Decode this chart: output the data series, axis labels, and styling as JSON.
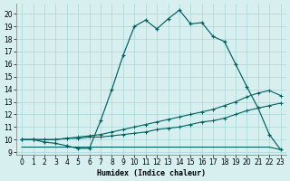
{
  "xlabel": "Humidex (Indice chaleur)",
  "xlim": [
    -0.5,
    23.5
  ],
  "ylim": [
    8.8,
    20.8
  ],
  "yticks": [
    9,
    10,
    11,
    12,
    13,
    14,
    15,
    16,
    17,
    18,
    19,
    20
  ],
  "xticks": [
    0,
    1,
    2,
    3,
    4,
    5,
    6,
    7,
    8,
    9,
    10,
    11,
    12,
    13,
    14,
    15,
    16,
    17,
    18,
    19,
    20,
    21,
    22,
    23
  ],
  "bg_color": "#d8efef",
  "grid_color": "#aad8d8",
  "line_color": "#006060",
  "curve_main_x": [
    0,
    1,
    2,
    3,
    4,
    5,
    6,
    7,
    8,
    9,
    10,
    11,
    12,
    13,
    14,
    15,
    16,
    17,
    18,
    19,
    20,
    21,
    22,
    23
  ],
  "curve_main_y": [
    10.0,
    10.0,
    9.8,
    9.7,
    9.5,
    9.3,
    9.3,
    11.5,
    14.0,
    16.7,
    19.0,
    19.5,
    18.8,
    19.6,
    20.3,
    19.2,
    19.3,
    18.2,
    17.8,
    16.0,
    14.2,
    12.5,
    10.4,
    9.2
  ],
  "curve_flat_x": [
    0,
    1,
    2,
    3,
    4,
    5,
    6,
    7,
    8,
    9,
    10,
    11,
    12,
    13,
    14,
    15,
    16,
    17,
    18,
    19,
    20,
    21,
    22,
    23
  ],
  "curve_flat_y": [
    9.4,
    9.4,
    9.4,
    9.4,
    9.4,
    9.4,
    9.4,
    9.4,
    9.4,
    9.4,
    9.4,
    9.4,
    9.4,
    9.4,
    9.4,
    9.4,
    9.4,
    9.4,
    9.4,
    9.4,
    9.4,
    9.4,
    9.4,
    9.2
  ],
  "diag_lower_x": [
    0,
    1,
    2,
    3,
    4,
    5,
    6,
    7,
    8,
    9,
    10,
    11,
    12,
    13,
    14,
    15,
    16,
    17,
    18,
    19,
    20,
    21,
    22,
    23
  ],
  "diag_lower_y": [
    10.0,
    10.0,
    10.0,
    10.0,
    10.1,
    10.1,
    10.2,
    10.2,
    10.3,
    10.4,
    10.5,
    10.6,
    10.8,
    10.9,
    11.0,
    11.2,
    11.4,
    11.5,
    11.7,
    12.0,
    12.3,
    12.5,
    12.7,
    12.9
  ],
  "diag_upper_x": [
    0,
    1,
    2,
    3,
    4,
    5,
    6,
    7,
    8,
    9,
    10,
    11,
    12,
    13,
    14,
    15,
    16,
    17,
    18,
    19,
    20,
    21,
    22,
    23
  ],
  "diag_upper_y": [
    10.0,
    10.0,
    10.0,
    10.0,
    10.1,
    10.2,
    10.3,
    10.4,
    10.6,
    10.8,
    11.0,
    11.2,
    11.4,
    11.6,
    11.8,
    12.0,
    12.2,
    12.4,
    12.7,
    13.0,
    13.4,
    13.7,
    13.9,
    13.5
  ]
}
